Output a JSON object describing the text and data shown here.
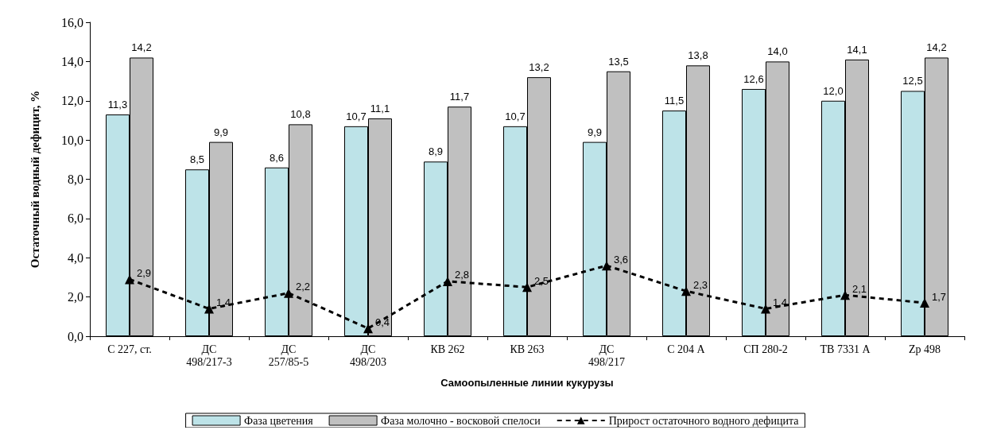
{
  "chart_data": {
    "type": "bar",
    "xlabel": "Самоопыленные линии кукурузы",
    "ylabel": "Остаточный водный дефицит, %",
    "categories": [
      "С 227, ст.",
      "ДС\n498/217-3",
      "ДС\n257/85-5",
      "ДС\n498/203",
      "КВ 262",
      "КВ 263",
      "ДС\n498/217",
      "С 204 А",
      "СП 280-2",
      "ТВ 7331 А",
      "Zp 498"
    ],
    "series": [
      {
        "name": "Фаза цветения",
        "color": "#bde3e8",
        "values": [
          11.3,
          8.5,
          8.6,
          10.7,
          8.9,
          10.7,
          9.9,
          11.5,
          12.6,
          12.0,
          12.5
        ],
        "value_labels": [
          "11,3",
          "8,5",
          "8,6",
          "10,7",
          "8,9",
          "10,7",
          "9,9",
          "11,5",
          "12,6",
          "12,0",
          "12,5"
        ]
      },
      {
        "name": "Фаза молочно - восковой спелоси",
        "color": "#c0c0c0",
        "values": [
          14.2,
          9.9,
          10.8,
          11.1,
          11.7,
          13.2,
          13.5,
          13.8,
          14.0,
          14.1,
          14.2
        ],
        "value_labels": [
          "14,2",
          "9,9",
          "10,8",
          "11,1",
          "11,7",
          "13,2",
          "13,5",
          "13,8",
          "14,0",
          "14,1",
          "14,2"
        ]
      },
      {
        "name": "Прирост остаточного водного дефицита",
        "type": "line",
        "color": "#000000",
        "marker": "triangle",
        "line_style": "dashed",
        "values": [
          2.9,
          1.4,
          2.2,
          0.4,
          2.8,
          2.5,
          3.6,
          2.3,
          1.4,
          2.1,
          1.7
        ],
        "value_labels": [
          "2,9",
          "1,4",
          "2,2",
          "0,4",
          "2,8",
          "2,5",
          "3,6",
          "2,3",
          "1,4",
          "2,1",
          "1,7"
        ]
      }
    ],
    "ylim": [
      0,
      16
    ],
    "yticks": [
      {
        "value": 0,
        "label": "0,0"
      },
      {
        "value": 2,
        "label": "2,0"
      },
      {
        "value": 4,
        "label": "4,0"
      },
      {
        "value": 6,
        "label": "6,0"
      },
      {
        "value": 8,
        "label": "8,0"
      },
      {
        "value": 10,
        "label": "10,0"
      },
      {
        "value": 12,
        "label": "12,0"
      },
      {
        "value": 14,
        "label": "14,0"
      },
      {
        "value": 16,
        "label": "16,0"
      }
    ],
    "grid": false,
    "legend": "bottom"
  }
}
